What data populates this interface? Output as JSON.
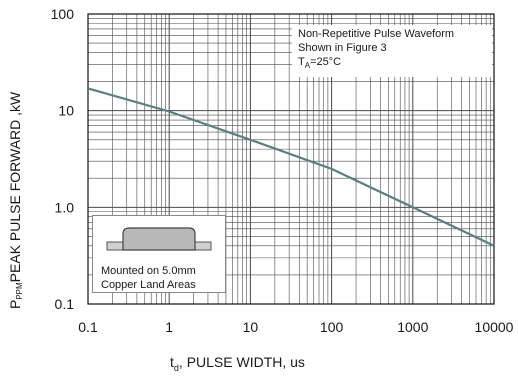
{
  "chart_data": {
    "type": "line",
    "xscale": "log",
    "yscale": "log",
    "xlim": [
      0.1,
      10000
    ],
    "ylim": [
      0.1,
      100
    ],
    "grid": true,
    "x_ticks": [
      "0.1",
      "1",
      "10",
      "100",
      "1000",
      "10000"
    ],
    "y_ticks": [
      "0.1",
      "1.0",
      "10",
      "100"
    ],
    "xlabel_main": "PULSE WIDTH, us",
    "xlabel_prefix": "t",
    "xlabel_sub": "d",
    "ylabel_main": "PEAK PULSE  FORWARD ,kW",
    "ylabel_prefix": "P",
    "ylabel_sub": "PPM",
    "series": [
      {
        "x": [
          0.1,
          1,
          10,
          100,
          1000,
          10000
        ],
        "y": [
          17,
          9.8,
          5,
          2.5,
          1.0,
          0.4
        ]
      }
    ],
    "annotations": {
      "note_line1": "Non-Repetitive Pulse Waveform",
      "note_line2": "Shown in Figure 3",
      "note_line3": "T",
      "note_line3_sub": "A",
      "note_line3_rest": "=25°C",
      "inset_line1": "Mounted on 5.0mm",
      "inset_line2": "Copper Land Areas"
    }
  },
  "colors": {
    "curve": "#5b7f7c",
    "grid": "#4a4a4a",
    "axis": "#111111"
  }
}
